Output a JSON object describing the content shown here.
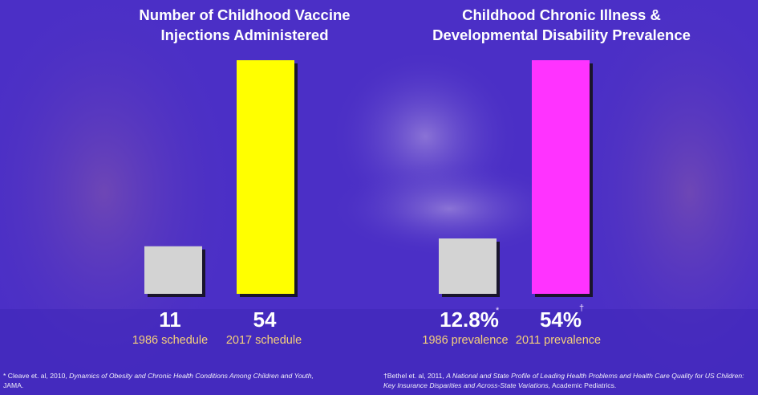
{
  "chart_data": [
    {
      "type": "bar",
      "title": "Number of Childhood Vaccine Injections Administered",
      "title_lines": [
        "Number of Childhood Vaccine",
        "Injections Administered"
      ],
      "categories": [
        "1986 schedule",
        "2017 schedule"
      ],
      "values": [
        11,
        54
      ],
      "value_labels": [
        "11",
        "54"
      ],
      "colors": [
        "#d3d3d3",
        "#ffff00"
      ],
      "ylim": [
        0,
        54
      ]
    },
    {
      "type": "bar",
      "title": "Childhood Chronic Illness & Developmental Disability Prevalence",
      "title_lines": [
        "Childhood Chronic Illness &",
        "Developmental Disability Prevalence"
      ],
      "categories": [
        "1986 prevalence",
        "2011 prevalence"
      ],
      "values": [
        12.8,
        54
      ],
      "value_labels": [
        "12.8%",
        "54%"
      ],
      "value_marks": [
        "*",
        "†"
      ],
      "colors": [
        "#d3d3d3",
        "#ff33ff"
      ],
      "ylim": [
        0,
        54
      ]
    }
  ],
  "citations": {
    "left": {
      "prefix": "* Cleave et. al, 2010, ",
      "italic": "Dynamics of Obesity and Chronic Health Conditions Among Children and Youth,",
      "suffix": "JAMA."
    },
    "right": {
      "prefix": "†Bethel et. al, 2011, ",
      "italic": "A National and State Profile of Leading Health Problems and Health Care Quality for US Children: Key Insurance Disparities and Across-State Variations,",
      "suffix": " Academic Pediatrics."
    }
  }
}
